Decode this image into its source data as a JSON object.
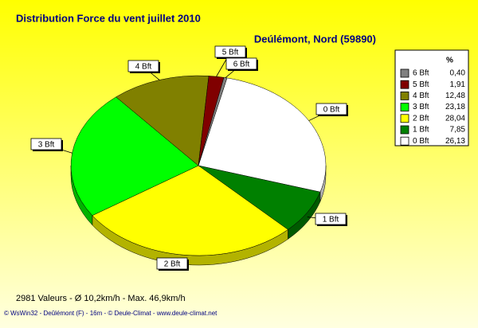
{
  "chart_data": {
    "type": "pie3d",
    "title": "Distribution Force du vent  juillet 2010",
    "subtitle": "Deúlémont, Nord (59890)",
    "legend_header": "%",
    "categories": [
      "6 Bft",
      "5 Bft",
      "4 Bft",
      "3 Bft",
      "2 Bft",
      "1 Bft",
      "0 Bft"
    ],
    "values": [
      0.4,
      1.91,
      12.48,
      23.18,
      28.04,
      7.85,
      26.13
    ],
    "value_labels": [
      "0,40",
      "1,91",
      "12,48",
      "23,18",
      "28,04",
      "7,85",
      "26,13"
    ],
    "colors": [
      "#808080",
      "#800000",
      "#808000",
      "#00ff00",
      "#ffff00",
      "#008000",
      "#ffffff"
    ],
    "legend_position": "right",
    "stats_text": "2981 Valeurs   -   Ø 10,2km/h  -  Max. 46,9km/h",
    "credits": "© WsWin32  -  Deûlémont (F) - 16m  -  © Deule-Climat - www.deule-climat.net"
  }
}
